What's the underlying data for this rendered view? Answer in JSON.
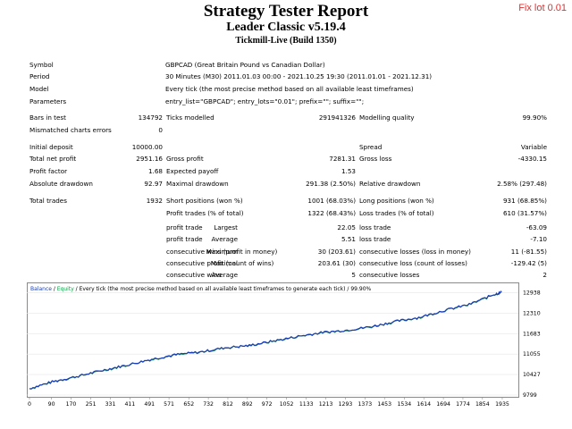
{
  "header": {
    "title": "Strategy Tester Report",
    "expert": "Leader Classic v5.19.4",
    "server": "Tickmill-Live (Build 1350)",
    "tag": "Fix lot 0.01"
  },
  "settings": [
    {
      "label": "Symbol",
      "value": "GBPCAD (Great Britain Pound vs Canadian Dollar)"
    },
    {
      "label": "Period",
      "value": "30 Minutes (M30) 2011.01.03 00:00 - 2021.10.25 19:30 (2011.01.01 - 2021.12.31)"
    },
    {
      "label": "Model",
      "value": "Every tick (the most precise method based on all available least timeframes)"
    },
    {
      "label": "Parameters",
      "value": "entry_list=\"GBPCAD\"; entry_lots=\"0.01\"; prefix=\"\"; suffix=\"\";"
    }
  ],
  "stats": {
    "bars_label": "Bars in test",
    "bars_value": "134792",
    "ticks_label": "Ticks modelled",
    "ticks_value": "291941326",
    "quality_label": "Modelling quality",
    "quality_value": "99.90%",
    "mismatch_label": "Mismatched charts errors",
    "mismatch_value": "0",
    "deposit_label": "Initial deposit",
    "deposit_value": "10000.00",
    "spread_label": "Spread",
    "spread_value": "Variable",
    "net_label": "Total net profit",
    "net_value": "2951.16",
    "gross_profit_label": "Gross profit",
    "gross_profit_value": "7281.31",
    "gross_loss_label": "Gross loss",
    "gross_loss_value": "-4330.15",
    "pf_label": "Profit factor",
    "pf_value": "1.68",
    "payoff_label": "Expected payoff",
    "payoff_value": "1.53",
    "abs_dd_label": "Absolute drawdown",
    "abs_dd_value": "92.97",
    "max_dd_label": "Maximal drawdown",
    "max_dd_value": "291.38 (2.50%)",
    "rel_dd_label": "Relative drawdown",
    "rel_dd_value": "2.58% (297.48)"
  },
  "trades": {
    "total_label": "Total trades",
    "total_value": "1932",
    "short_label": "Short positions (won %)",
    "short_value": "1001 (68.03%)",
    "long_label": "Long positions (won %)",
    "long_value": "931 (68.85%)",
    "profit_trades_label": "Profit trades (% of total)",
    "profit_trades_value": "1322 (68.43%)",
    "loss_trades_label": "Loss trades (% of total)",
    "loss_trades_value": "610 (31.57%)",
    "largest": "Largest",
    "average": "Average",
    "maximum": "Maximum",
    "maximal": "Maximal",
    "profit_trade": "profit trade",
    "loss_trade": "loss trade",
    "largest_profit": "22.05",
    "largest_loss": "-63.09",
    "average_profit": "5.51",
    "average_loss": "-7.10",
    "cons_wins_label": "consecutive wins (profit in money)",
    "cons_wins_value": "30 (203.61)",
    "cons_losses_label": "consecutive losses (loss in money)",
    "cons_losses_value": "11 (-81.55)",
    "cons_profit_label": "consecutive profit (count of wins)",
    "cons_profit_value": "203.61 (30)",
    "cons_loss_label": "consecutive loss (count of losses)",
    "cons_loss_value": "-129.42 (5)",
    "avg_wins_label": "consecutive wins",
    "avg_wins_value": "5",
    "avg_losses_label": "consecutive losses",
    "avg_losses_value": "2"
  },
  "chart_data": {
    "type": "line",
    "legend_balance": "Balance",
    "legend_sep": " / ",
    "legend_equity": "Equity",
    "legend_rest": " / Every tick (the most precise method based on all available least timeframes to generate each tick) / 99.90%",
    "ylim": [
      9799,
      13200
    ],
    "y_ticks": [
      "12938",
      "12310",
      "11683",
      "11055",
      "10427",
      "9799"
    ],
    "y_tick_values": [
      12938,
      12310,
      11683,
      11055,
      10427,
      9799
    ],
    "xlim": [
      0,
      1990
    ],
    "x_ticks": [
      "0",
      "90",
      "170",
      "251",
      "331",
      "411",
      "491",
      "571",
      "652",
      "732",
      "812",
      "892",
      "972",
      "1052",
      "1133",
      "1213",
      "1293",
      "1373",
      "1453",
      "1534",
      "1614",
      "1694",
      "1774",
      "1854",
      "1935"
    ],
    "x_tick_values": [
      0,
      90,
      170,
      251,
      331,
      411,
      491,
      571,
      652,
      732,
      812,
      892,
      972,
      1052,
      1133,
      1213,
      1293,
      1373,
      1453,
      1534,
      1614,
      1694,
      1774,
      1854,
      1935
    ],
    "colors": {
      "balance": "#1a3fb0",
      "equity": "#16a34a"
    },
    "series": [
      {
        "name": "Balance",
        "x": [
          0,
          100,
          200,
          300,
          400,
          500,
          600,
          700,
          800,
          900,
          1000,
          1100,
          1200,
          1300,
          1400,
          1500,
          1600,
          1700,
          1800,
          1900,
          1932
        ],
        "y": [
          10000,
          10220,
          10380,
          10560,
          10720,
          10900,
          11040,
          11120,
          11250,
          11320,
          11460,
          11600,
          11720,
          11790,
          11900,
          12060,
          12190,
          12400,
          12580,
          12880,
          12951
        ]
      }
    ]
  }
}
